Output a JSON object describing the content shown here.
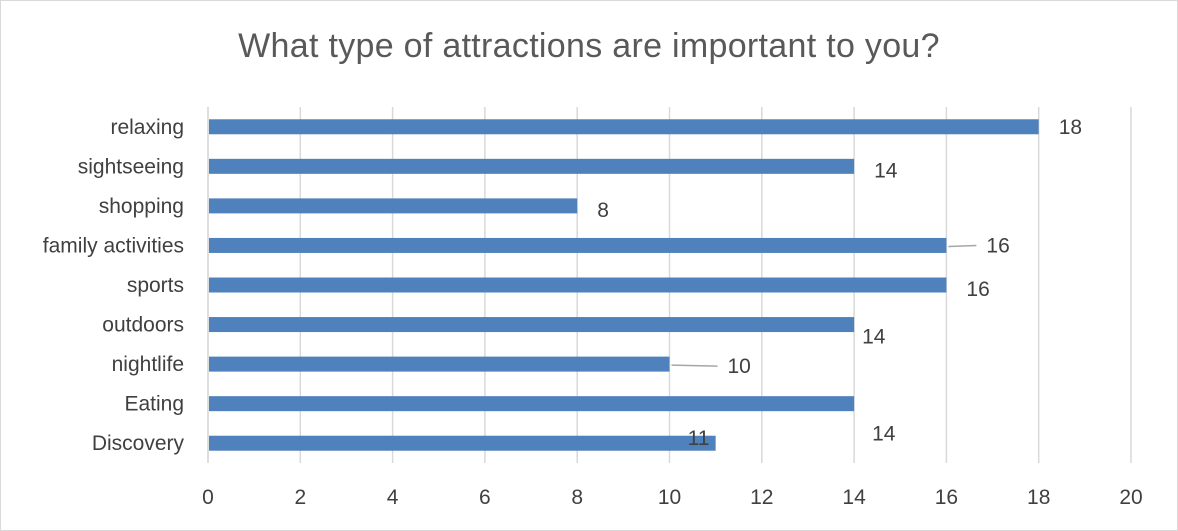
{
  "chart_data": {
    "type": "bar",
    "orientation": "horizontal",
    "title": "What type of attractions are important to you?",
    "categories": [
      "relaxing",
      "sightseeing",
      "shopping",
      "family activities",
      "sports",
      "outdoors",
      "nightlife",
      "Eating",
      "Discovery"
    ],
    "values": [
      18,
      14,
      8,
      16,
      16,
      14,
      10,
      14,
      11
    ],
    "xlim": [
      0,
      20
    ],
    "xticks": [
      "0",
      "2",
      "4",
      "6",
      "8",
      "10",
      "12",
      "14",
      "16",
      "18",
      "20"
    ],
    "xlabel": "",
    "ylabel": "",
    "grid": "vertical",
    "legend": "none",
    "bar_color": "#4f81bd",
    "grid_color": "#d9d9d9"
  }
}
